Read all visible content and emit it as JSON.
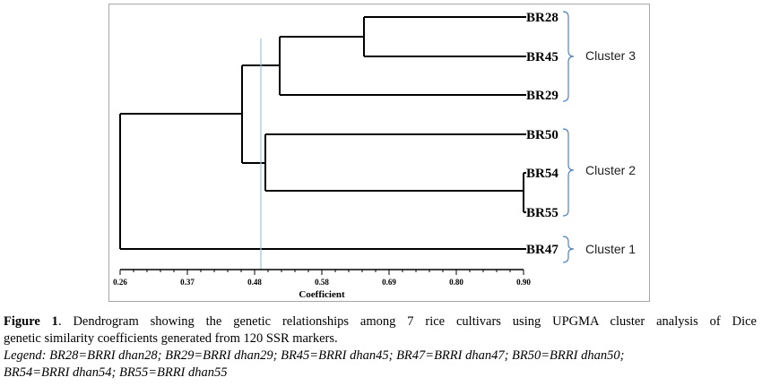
{
  "figure": {
    "leaves": [
      "BR28",
      "BR45",
      "BR29",
      "BR50",
      "BR54",
      "BR55",
      "BR47"
    ],
    "clusters": [
      {
        "label": "Cluster 3",
        "members": [
          "BR28",
          "BR45",
          "BR29"
        ]
      },
      {
        "label": "Cluster 2",
        "members": [
          "BR50",
          "BR54",
          "BR55"
        ]
      },
      {
        "label": "Cluster 1",
        "members": [
          "BR47"
        ]
      }
    ],
    "axis": {
      "title": "Coefficient",
      "ticks": [
        "0.26",
        "0.37",
        "0.48",
        "0.58",
        "0.69",
        "0.80",
        "0.90"
      ],
      "range": [
        0.26,
        0.9
      ]
    },
    "merges": [
      {
        "join": [
          "BR54",
          "BR55"
        ],
        "height": 0.9
      },
      {
        "join": [
          "BR28",
          "BR45"
        ],
        "height": 0.67
      },
      {
        "join": [
          "BR28-BR45",
          "BR29"
        ],
        "height": 0.52
      },
      {
        "join": [
          "BR50",
          "BR54-BR55"
        ],
        "height": 0.5
      },
      {
        "join": [
          "Cluster 3",
          "Cluster 2"
        ],
        "height": 0.46
      },
      {
        "join": [
          "Cluster 3+2",
          "BR47"
        ],
        "height": 0.26
      }
    ],
    "cutoff": 0.49,
    "cutoff_color": "#9dc3d8"
  },
  "caption": {
    "label": "Figure 1",
    "text_line1": ". Dendrogram showing the genetic relationships among 7 rice cultivars using UPGMA cluster analysis of Dice",
    "text_line2": "genetic similarity coefficients generated from 120 SSR markers.",
    "legend_line1": "Legend: BR28=BRRI dhan28; BR29=BRRI dhan29; BR45=BRRI dhan45; BR47=BRRI dhan47; BR50=BRRI dhan50;",
    "legend_line2": "BR54=BRRI dhan54; BR55=BRRI dhan55"
  }
}
